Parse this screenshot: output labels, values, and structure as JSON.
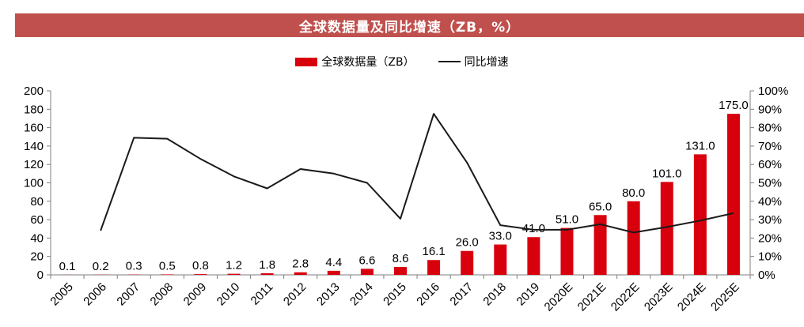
{
  "title": "全球数据量及同比增速（ZB，%）",
  "legend": {
    "bar_label": "全球数据量（ZB）",
    "line_label": "同比增速"
  },
  "colors": {
    "title_bg": "#c0504d",
    "bar": "#d9000d",
    "line": "#1a1a1a"
  },
  "chart_data": {
    "type": "bar",
    "title": "全球数据量及同比增速（ZB，%）",
    "categories": [
      "2005",
      "2006",
      "2007",
      "2008",
      "2009",
      "2010",
      "2011",
      "2012",
      "2013",
      "2014",
      "2015",
      "2016",
      "2017",
      "2018",
      "2019",
      "2020E",
      "2021E",
      "2022E",
      "2023E",
      "2024E",
      "2025E"
    ],
    "series": [
      {
        "name": "全球数据量（ZB）",
        "type": "bar",
        "axis": "left",
        "values": [
          0.1,
          0.2,
          0.3,
          0.5,
          0.8,
          1.2,
          1.8,
          2.8,
          4.4,
          6.6,
          8.6,
          16.1,
          26.0,
          33.0,
          41.0,
          51.0,
          65.0,
          80.0,
          101.0,
          131.0,
          175.0
        ],
        "labels": [
          "0.1",
          "0.2",
          "0.3",
          "0.5",
          "0.8",
          "1.2",
          "1.8",
          "2.8",
          "4.4",
          "6.6",
          "8.6",
          "16.1",
          "26.0",
          "33.0",
          "41.0",
          "51.0",
          "65.0",
          "80.0",
          "101.0",
          "131.0",
          "175.0"
        ]
      },
      {
        "name": "同比增速",
        "type": "line",
        "axis": "right",
        "values": [
          null,
          24,
          74.5,
          74,
          63,
          53.5,
          47,
          57.5,
          55,
          50,
          30.5,
          87.5,
          61,
          27,
          24.5,
          24.5,
          27.5,
          23,
          26,
          29.5,
          33.5
        ]
      }
    ],
    "y_left": {
      "range": [
        0,
        200
      ],
      "ticks": [
        "0",
        "20",
        "40",
        "60",
        "80",
        "100",
        "120",
        "140",
        "160",
        "180",
        "200"
      ]
    },
    "y_right": {
      "range": [
        0,
        100
      ],
      "ticks": [
        "0%",
        "10%",
        "20%",
        "30%",
        "40%",
        "50%",
        "60%",
        "70%",
        "80%",
        "90%",
        "100%"
      ]
    },
    "grid": false,
    "legend_position": "top"
  }
}
